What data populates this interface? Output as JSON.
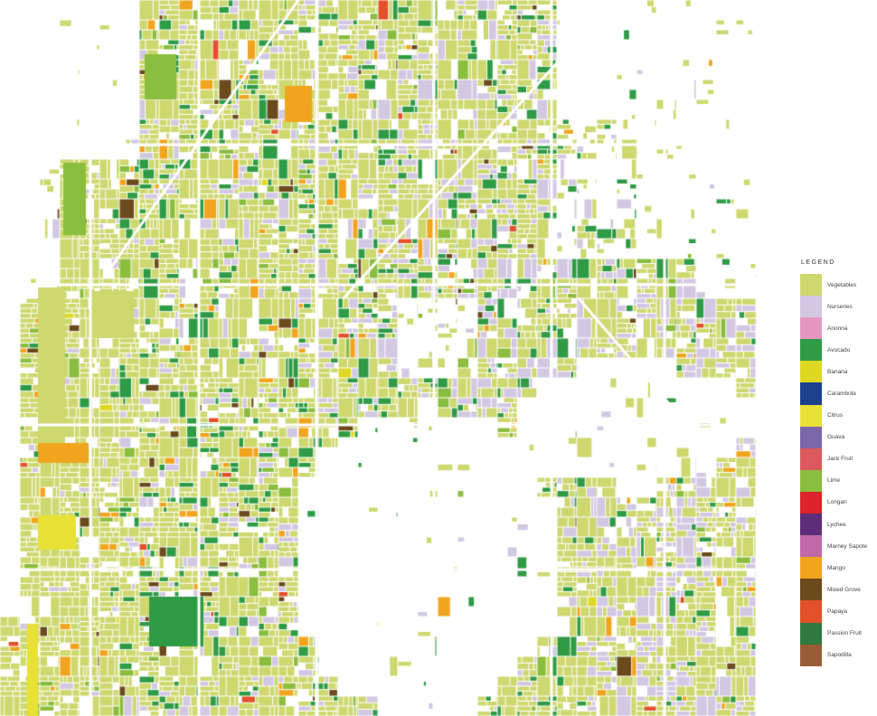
{
  "legend": {
    "title": "LEGEND",
    "items": [
      {
        "label": "Vegetables",
        "color": "#cdd86f"
      },
      {
        "label": "Nurseries",
        "color": "#d2c8e2"
      },
      {
        "label": "Anonna",
        "color": "#e597bf"
      },
      {
        "label": "Avocado",
        "color": "#2f9b45"
      },
      {
        "label": "Banana",
        "color": "#dfd823"
      },
      {
        "label": "Carambola",
        "color": "#1c418d"
      },
      {
        "label": "Citrus",
        "color": "#e8e136"
      },
      {
        "label": "Guava",
        "color": "#7a66a8"
      },
      {
        "label": "Jack Fruit",
        "color": "#dc5a5e"
      },
      {
        "label": "Lime",
        "color": "#8bbd3e"
      },
      {
        "label": "Longan",
        "color": "#dc2329"
      },
      {
        "label": "Lychee",
        "color": "#5e2d7a"
      },
      {
        "label": "Marney Sapote",
        "color": "#bf69a8"
      },
      {
        "label": "Mango",
        "color": "#f1a51e"
      },
      {
        "label": "Mixed Grove",
        "color": "#6b4a1c"
      },
      {
        "label": "Papaya",
        "color": "#e2512a"
      },
      {
        "label": "Passion Fruit",
        "color": "#2f7a3e"
      },
      {
        "label": "Sapodilla",
        "color": "#9a5c37"
      }
    ]
  }
}
